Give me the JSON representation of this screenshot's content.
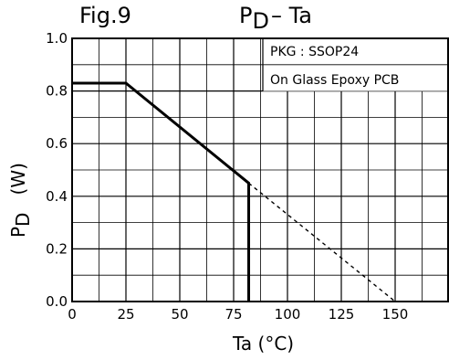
{
  "figure": {
    "fig_label": "Fig.9",
    "title_main": "P",
    "title_sub": "D",
    "title_rest": "– Ta",
    "ylabel_main": "P",
    "ylabel_sub": "D",
    "ylabel_unit": "(W)",
    "xlabel": "Ta (°C)",
    "notes": [
      "PKG : SSOP24",
      "On Glass Epoxy PCB"
    ]
  },
  "chart_data": {
    "type": "line",
    "xlim": [
      0,
      175
    ],
    "ylim": [
      0,
      1.0
    ],
    "x_ticks": [
      0,
      25,
      50,
      75,
      100,
      125,
      150
    ],
    "x_tick_labels": [
      "0",
      "25",
      "50",
      "75",
      "100",
      "125",
      "150"
    ],
    "y_ticks": [
      0.0,
      0.2,
      0.4,
      0.6,
      0.8,
      1.0
    ],
    "y_tick_labels": [
      "0.0",
      "0.2",
      "0.4",
      "0.6",
      "0.8",
      "1.0"
    ],
    "grid": true,
    "grid_x_step": 12.5,
    "grid_y_step": 0.1,
    "series": [
      {
        "style": "solid",
        "x": [
          0,
          25,
          82,
          82
        ],
        "y": [
          0.83,
          0.83,
          0.45,
          0.0
        ]
      },
      {
        "style": "dashed",
        "x": [
          82,
          150
        ],
        "y": [
          0.45,
          0.0
        ]
      }
    ]
  }
}
